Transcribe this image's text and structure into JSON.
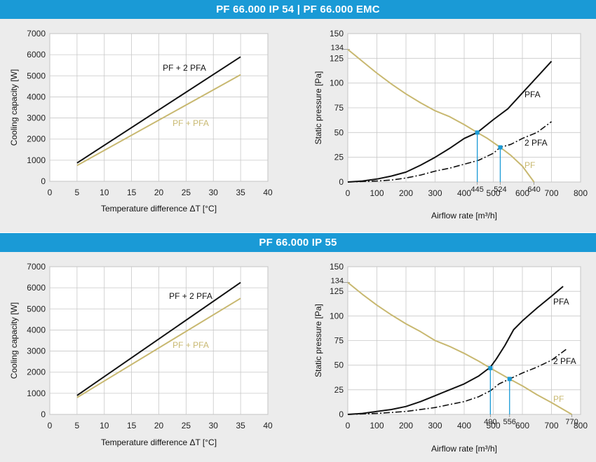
{
  "sections": [
    {
      "title": "PF 66.000 IP 54 | PF 66.000 EMC"
    },
    {
      "title": "PF 66.000 IP 55"
    }
  ],
  "colors": {
    "band": "#1a9ad6",
    "panel": "#ececec",
    "dark_series": "#111111",
    "light_series": "#c8b870",
    "marker": "#1a9ad6"
  },
  "chart_data": [
    {
      "type": "line",
      "xlabel": "Temperature difference ΔT [°C]",
      "ylabel": "Cooling capacity [W]",
      "xlim": [
        0,
        40
      ],
      "ylim": [
        0,
        7000
      ],
      "xticks": [
        0,
        5,
        10,
        15,
        20,
        25,
        30,
        35,
        40
      ],
      "yticks": [
        0,
        1000,
        2000,
        3000,
        4000,
        5000,
        6000,
        7000
      ],
      "grid": true,
      "series": [
        {
          "name": "PF + 2 PFA",
          "style": "solid",
          "color": "dark",
          "x": [
            5,
            35
          ],
          "y": [
            870,
            5900
          ]
        },
        {
          "name": "PF + PFA",
          "style": "solid",
          "color": "light",
          "x": [
            5,
            35
          ],
          "y": [
            750,
            5050
          ]
        }
      ]
    },
    {
      "type": "line",
      "xlabel": "Airflow rate [m³/h]",
      "ylabel": "Static pressure [Pa]",
      "xlim": [
        0,
        800
      ],
      "ylim": [
        0,
        150
      ],
      "xticks": [
        0,
        100,
        200,
        300,
        400,
        500,
        600,
        700,
        800
      ],
      "yticks": [
        0,
        25,
        50,
        75,
        100,
        125,
        150
      ],
      "extra_yticks": [
        134
      ],
      "extra_xticks": [
        445,
        524,
        640
      ],
      "grid": true,
      "series": [
        {
          "name": "PF",
          "style": "solid",
          "color": "light",
          "x": [
            0,
            50,
            100,
            150,
            200,
            250,
            300,
            350,
            400,
            445,
            480,
            524,
            560,
            600,
            640
          ],
          "y": [
            134,
            122,
            110,
            99,
            89,
            80,
            72,
            66,
            58,
            50,
            44,
            35,
            27,
            16,
            0
          ]
        },
        {
          "name": "PFA",
          "style": "solid",
          "color": "dark",
          "x": [
            0,
            50,
            100,
            150,
            200,
            250,
            300,
            350,
            400,
            445,
            500,
            550,
            600,
            650,
            700
          ],
          "y": [
            0,
            1,
            3,
            6,
            10,
            17,
            25,
            34,
            44,
            50,
            63,
            74,
            90,
            106,
            122
          ]
        },
        {
          "name": "2 PFA",
          "style": "dashdot",
          "color": "dark",
          "x": [
            0,
            100,
            150,
            200,
            250,
            300,
            350,
            400,
            450,
            500,
            524,
            560,
            600,
            650,
            700
          ],
          "y": [
            0,
            1,
            2,
            4,
            7,
            11,
            14,
            18,
            22,
            29,
            35,
            38,
            44,
            50,
            61
          ]
        }
      ],
      "markers": [
        {
          "x": 445,
          "y": 50
        },
        {
          "x": 524,
          "y": 35
        }
      ]
    },
    {
      "type": "line",
      "xlabel": "Temperature difference ΔT [°C]",
      "ylabel": "Cooling capacity [W]",
      "xlim": [
        0,
        40
      ],
      "ylim": [
        0,
        7000
      ],
      "xticks": [
        0,
        5,
        10,
        15,
        20,
        25,
        30,
        35,
        40
      ],
      "yticks": [
        0,
        1000,
        2000,
        3000,
        4000,
        5000,
        6000,
        7000
      ],
      "grid": true,
      "series": [
        {
          "name": "PF + 2 PFA",
          "style": "solid",
          "color": "dark",
          "x": [
            5,
            35
          ],
          "y": [
            900,
            6250
          ]
        },
        {
          "name": "PF + PFA",
          "style": "solid",
          "color": "light",
          "x": [
            5,
            35
          ],
          "y": [
            800,
            5500
          ]
        }
      ]
    },
    {
      "type": "line",
      "xlabel": "Airflow rate [m³/h]",
      "ylabel": "Static pressure [Pa]",
      "xlim": [
        0,
        800
      ],
      "ylim": [
        0,
        150
      ],
      "xticks": [
        0,
        100,
        200,
        300,
        400,
        500,
        600,
        700,
        800
      ],
      "yticks": [
        0,
        25,
        50,
        75,
        100,
        125,
        150
      ],
      "extra_yticks": [
        134
      ],
      "extra_xticks": [
        490,
        556,
        770
      ],
      "grid": true,
      "series": [
        {
          "name": "PF",
          "style": "solid",
          "color": "light",
          "x": [
            0,
            50,
            100,
            150,
            200,
            250,
            300,
            350,
            400,
            450,
            490,
            520,
            556,
            600,
            650,
            700,
            770
          ],
          "y": [
            134,
            122,
            111,
            101,
            92,
            84,
            75,
            69,
            62,
            54,
            47,
            42,
            36,
            29,
            20,
            12,
            0
          ]
        },
        {
          "name": "PFA",
          "style": "solid",
          "color": "dark",
          "x": [
            0,
            50,
            100,
            150,
            200,
            250,
            300,
            350,
            400,
            450,
            490,
            510,
            540,
            570,
            600,
            650,
            700,
            740
          ],
          "y": [
            0,
            1,
            3,
            5,
            8,
            13,
            19,
            25,
            31,
            39,
            48,
            56,
            70,
            86,
            95,
            108,
            120,
            130
          ]
        },
        {
          "name": "2 PFA",
          "style": "dashdot",
          "color": "dark",
          "x": [
            0,
            100,
            200,
            300,
            350,
            400,
            450,
            490,
            520,
            556,
            600,
            650,
            700,
            750
          ],
          "y": [
            0,
            1,
            3,
            7,
            10,
            13,
            18,
            24,
            31,
            36,
            42,
            48,
            55,
            66
          ]
        }
      ],
      "markers": [
        {
          "x": 490,
          "y": 47
        },
        {
          "x": 556,
          "y": 36
        }
      ]
    }
  ]
}
